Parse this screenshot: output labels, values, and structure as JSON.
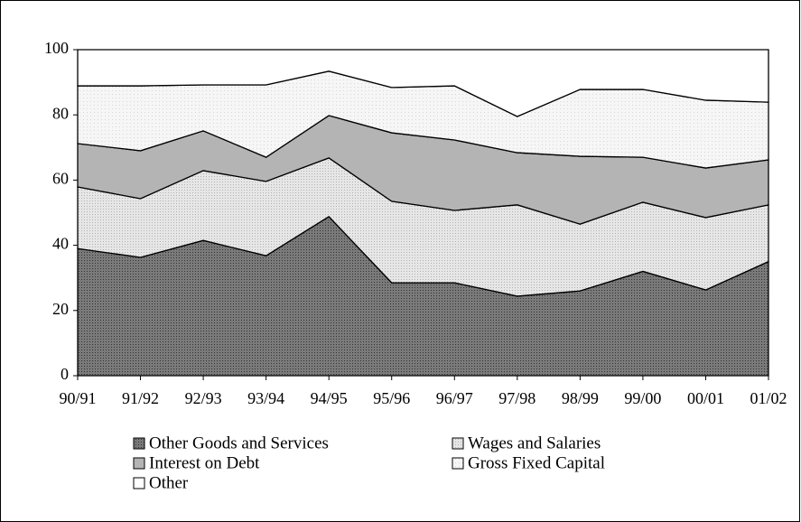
{
  "chart_data": {
    "type": "stacked-area",
    "categories": [
      "90/91",
      "91/92",
      "92/93",
      "93/94",
      "94/95",
      "95/96",
      "96/97",
      "97/98",
      "98/99",
      "99/00",
      "00/01",
      "01/02"
    ],
    "series": [
      {
        "name": "Other Goods and Services",
        "color": "#7a7a7a",
        "values": [
          39,
          36.3,
          41.5,
          36.8,
          48.8,
          28.5,
          28.5,
          24.4,
          26,
          32,
          26.3,
          35
        ]
      },
      {
        "name": "Wages and Salaries",
        "color": "#e6e6e6",
        "values": [
          18.9,
          18,
          21.4,
          22.8,
          18,
          25,
          22.2,
          28,
          20.5,
          21.2,
          22.2,
          17.4
        ]
      },
      {
        "name": "Interest on Debt",
        "color": "#b4b4b4",
        "values": [
          13.3,
          14.7,
          12.2,
          7.4,
          13,
          21,
          21.6,
          16,
          20.8,
          13.8,
          15.2,
          13.8
        ]
      },
      {
        "name": "Gross Fixed Capital",
        "color": "#f6f6f6",
        "values": [
          17.7,
          19.9,
          14.1,
          22.2,
          13.6,
          13.9,
          16.6,
          11.1,
          20.5,
          20.8,
          20.8,
          17.7
        ]
      },
      {
        "name": "Other",
        "color": "#ffffff",
        "values": [
          11.1,
          11.1,
          10.8,
          10.8,
          6.6,
          11.6,
          11.1,
          20.5,
          12.2,
          12.2,
          15.5,
          16.1
        ]
      }
    ],
    "ylim": [
      0,
      100
    ],
    "yticks": [
      0,
      20,
      40,
      60,
      80,
      100
    ]
  }
}
